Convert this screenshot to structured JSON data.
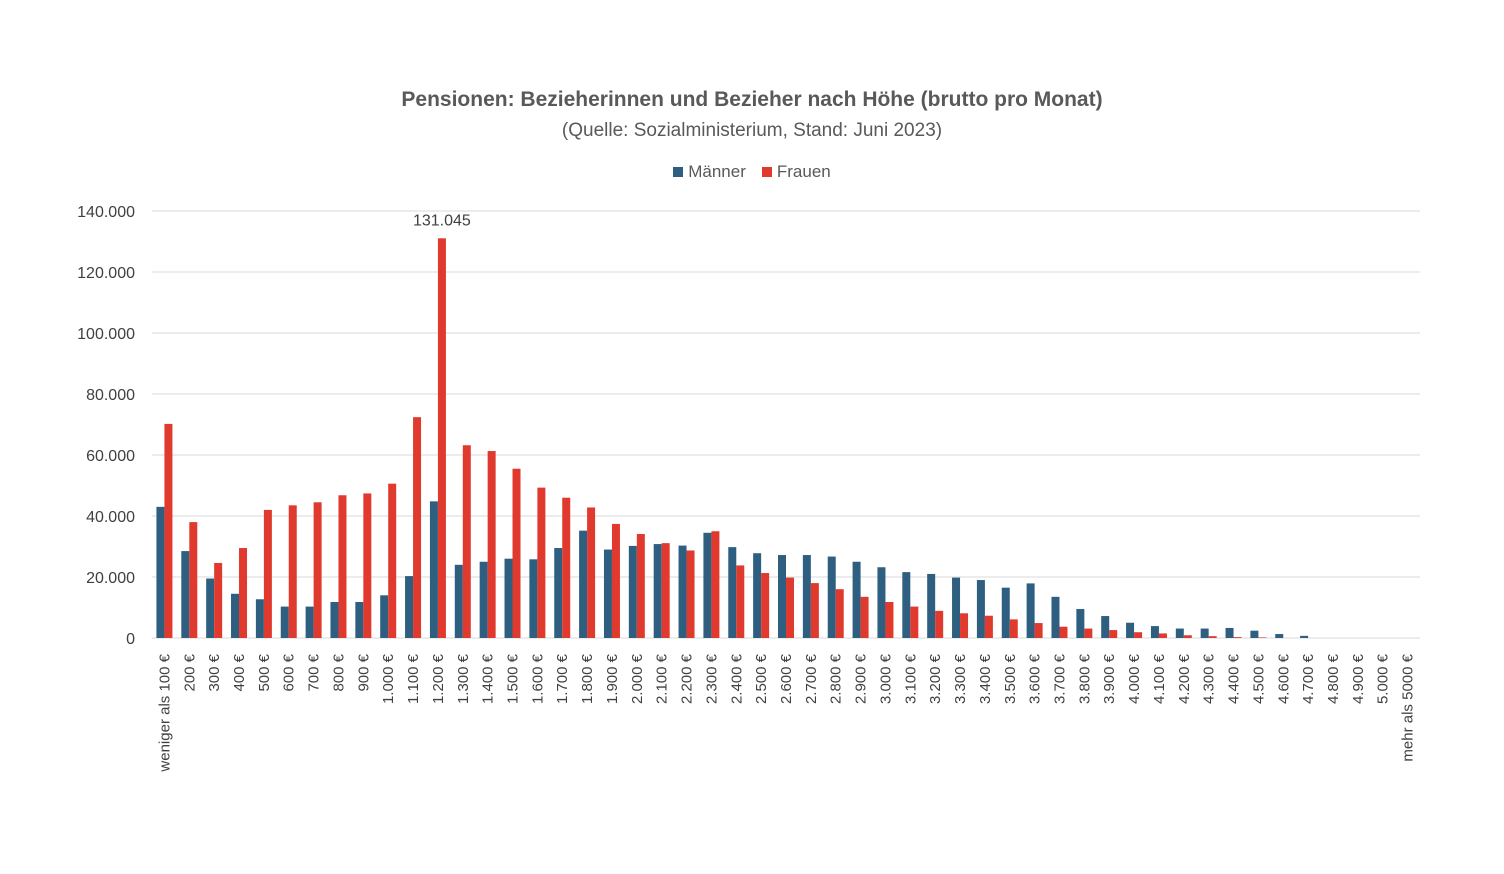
{
  "colors": {
    "maenner": "#2e5f80",
    "frauen": "#e03a2e",
    "grid": "#d9d9d9",
    "text": "#404040"
  },
  "chart_data": {
    "type": "bar",
    "title": "Pensionen: Bezieherinnen und Bezieher nach Höhe (brutto pro Monat)",
    "subtitle": "(Quelle: Sozialministerium, Stand: Juni 2023)",
    "legend_position": "top",
    "grid": true,
    "ylim": [
      0,
      140000
    ],
    "yticks": [
      0,
      20000,
      40000,
      60000,
      80000,
      100000,
      120000,
      140000
    ],
    "ytick_labels": [
      "0",
      "20.000",
      "40.000",
      "60.000",
      "80.000",
      "100.000",
      "120.000",
      "140.000"
    ],
    "categories": [
      "weniger als 100 €",
      "200 €",
      "300 €",
      "400 €",
      "500 €",
      "600 €",
      "700 €",
      "800 €",
      "900 €",
      "1.000 €",
      "1.100 €",
      "1.200 €",
      "1.300 €",
      "1.400 €",
      "1.500 €",
      "1.600 €",
      "1.700 €",
      "1.800 €",
      "1.900 €",
      "2.000 €",
      "2.100 €",
      "2.200 €",
      "2.300 €",
      "2.400 €",
      "2.500 €",
      "2.600 €",
      "2.700 €",
      "2.800 €",
      "2.900 €",
      "3.000 €",
      "3.100 €",
      "3.200 €",
      "3.300 €",
      "3.400 €",
      "3.500 €",
      "3.600 €",
      "3.700 €",
      "3.800 €",
      "3.900 €",
      "4.000 €",
      "4.100 €",
      "4.200 €",
      "4.300 €",
      "4.400 €",
      "4.500 €",
      "4.600 €",
      "4.700 €",
      "4.800 €",
      "4.900 €",
      "5.000 €",
      "mehr als 5000 €"
    ],
    "series": [
      {
        "name": "Männer",
        "color": "#2e5f80",
        "values": [
          43000,
          28500,
          19500,
          14500,
          12700,
          10300,
          10300,
          11800,
          11800,
          14000,
          20300,
          44800,
          24000,
          25000,
          26000,
          25800,
          29500,
          35200,
          29000,
          30200,
          30800,
          30300,
          34500,
          29800,
          27800,
          27200,
          27200,
          26700,
          25000,
          23200,
          21600,
          21000,
          19800,
          19000,
          16500,
          17900,
          13500,
          9500,
          7200,
          5000,
          3900,
          3100,
          3100,
          3300,
          2400,
          1300,
          700,
          0,
          0,
          0,
          0
        ]
      },
      {
        "name": "Frauen",
        "color": "#e03a2e",
        "values": [
          70200,
          38000,
          24600,
          29500,
          42000,
          43500,
          44500,
          46800,
          47400,
          50600,
          72400,
          131045,
          63200,
          61300,
          55500,
          49300,
          46000,
          42800,
          37400,
          34100,
          31100,
          28700,
          35000,
          23800,
          21300,
          19800,
          18000,
          16000,
          13500,
          11800,
          10300,
          8900,
          8100,
          7300,
          6100,
          4900,
          3700,
          3100,
          2600,
          1900,
          1500,
          900,
          600,
          300,
          200,
          0,
          0,
          0,
          0,
          0,
          0
        ]
      }
    ],
    "annotations": [
      {
        "series": "Frauen",
        "category": "1.200 €",
        "label": "131.045"
      }
    ]
  }
}
